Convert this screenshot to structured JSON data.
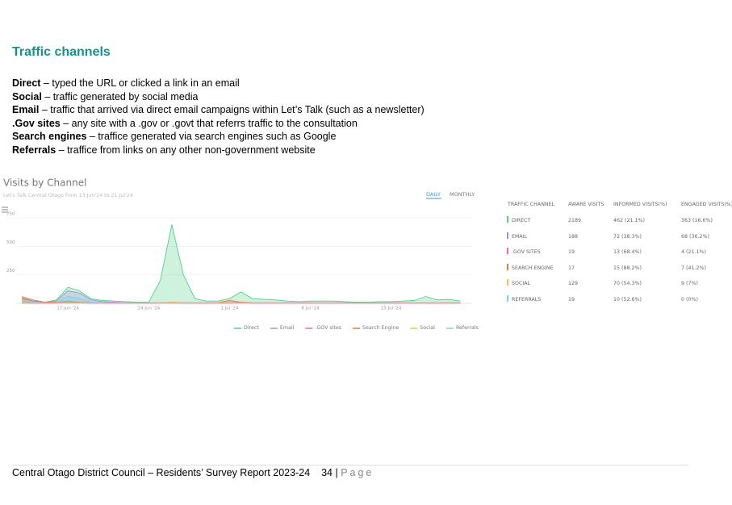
{
  "header": {
    "title": "Traffic channels"
  },
  "definitions": [
    {
      "term": "Direct",
      "text": "– typed the URL or clicked a link in an email"
    },
    {
      "term": "Social",
      "text": "– traffic generated by social media"
    },
    {
      "term": "Email",
      "text": "– traffic that arrived via direct email campaigns within Let’s Talk (such as a newsletter)"
    },
    {
      "term": ".Gov sites",
      "text": "– any site with a .gov or .govt that referrs traffic to the consultation"
    },
    {
      "term": "Search engines",
      "text": "– traffice generated via search engines such as Google"
    },
    {
      "term": "Referrals",
      "text": "– traffice from links on any other non-government website"
    }
  ],
  "chart_data": {
    "type": "area",
    "title": "Visits by Channel",
    "subtitle": "Let's Talk Central Otago from 13 Jun'24 to 21 Jul'24",
    "tabs": [
      "DAILY",
      "MONTHLY"
    ],
    "categories": [
      null,
      null,
      null,
      null,
      "17 Jun '24",
      null,
      null,
      null,
      null,
      null,
      null,
      "24 Jun '24",
      null,
      null,
      null,
      null,
      null,
      null,
      "1 Jul '24",
      null,
      null,
      null,
      null,
      null,
      null,
      "8 Jul '24",
      null,
      null,
      null,
      null,
      null,
      null,
      "15 Jul '24",
      null,
      null,
      null,
      null,
      null,
      null
    ],
    "ylim": [
      0,
      800
    ],
    "yticks": [
      250,
      500,
      750
    ],
    "grid": true,
    "series": [
      {
        "name": "Direct",
        "color": "#4fcf87",
        "values": [
          40,
          20,
          10,
          30,
          140,
          110,
          40,
          25,
          20,
          15,
          10,
          10,
          200,
          690,
          250,
          40,
          20,
          20,
          40,
          100,
          40,
          35,
          30,
          20,
          15,
          20,
          20,
          20,
          15,
          10,
          10,
          15,
          15,
          20,
          25,
          60,
          30,
          35,
          20
        ]
      },
      {
        "name": "Email",
        "color": "#a88ddb",
        "values": [
          50,
          20,
          10,
          20,
          110,
          90,
          30,
          15,
          10,
          5,
          5,
          5,
          5,
          10,
          5,
          5,
          5,
          5,
          5,
          10,
          5,
          5,
          5,
          5,
          5,
          5,
          5,
          5,
          5,
          5,
          5,
          5,
          5,
          5,
          5,
          5,
          5,
          5,
          5
        ]
      },
      {
        "name": ".GOV sites",
        "color": "#f06b93",
        "values": [
          2,
          1,
          1,
          1,
          3,
          2,
          1,
          1,
          1,
          1,
          1,
          1,
          1,
          2,
          1,
          1,
          1,
          1,
          1,
          2,
          1,
          1,
          1,
          1,
          1,
          1,
          1,
          1,
          1,
          1,
          1,
          1,
          1,
          1,
          1,
          1,
          1,
          1,
          1
        ]
      },
      {
        "name": "Search Engine",
        "color": "#e8793a",
        "values": [
          60,
          30,
          10,
          10,
          20,
          10,
          5,
          5,
          5,
          5,
          5,
          5,
          5,
          5,
          5,
          5,
          5,
          5,
          25,
          10,
          5,
          5,
          5,
          5,
          5,
          5,
          5,
          5,
          5,
          5,
          5,
          5,
          5,
          5,
          5,
          5,
          5,
          5,
          5
        ]
      },
      {
        "name": "Social",
        "color": "#f3c14a",
        "values": [
          10,
          5,
          3,
          3,
          10,
          8,
          3,
          3,
          3,
          3,
          3,
          3,
          5,
          10,
          5,
          3,
          3,
          3,
          5,
          5,
          3,
          3,
          3,
          3,
          3,
          3,
          3,
          3,
          3,
          3,
          3,
          3,
          3,
          3,
          3,
          3,
          3,
          3,
          3
        ]
      },
      {
        "name": "Referrals",
        "color": "#7fd0ef",
        "values": [
          20,
          10,
          5,
          5,
          60,
          40,
          10,
          5,
          3,
          3,
          3,
          3,
          3,
          5,
          3,
          3,
          3,
          3,
          3,
          5,
          3,
          3,
          3,
          3,
          3,
          3,
          3,
          3,
          3,
          3,
          3,
          3,
          3,
          3,
          3,
          3,
          3,
          3,
          3
        ]
      }
    ]
  },
  "table": {
    "header": [
      "TRAFFIC CHANNEL",
      "AWARE VISITS",
      "INFORMED VISITS(%)",
      "ENGAGED VISITS(%)"
    ],
    "rows": [
      [
        "DIRECT",
        "2189",
        "462 (21.1%)",
        "363 (16.6%)"
      ],
      [
        "EMAIL",
        "188",
        "72 (38.3%)",
        "68 (36.2%)"
      ],
      [
        ".GOV SITES",
        "19",
        "13 (68.4%)",
        "4 (21.1%)"
      ],
      [
        "SEARCH ENGINE",
        "17",
        "15 (88.2%)",
        "7 (41.2%)"
      ],
      [
        "SOCIAL",
        "129",
        "70 (54.3%)",
        "9 (7%)"
      ],
      [
        "REFERRALS",
        "19",
        "10 (52.6%)",
        "0 (0%)"
      ]
    ]
  },
  "footer": {
    "text": "Central Otago District Council – Residents’ Survey Report 2023-24",
    "page_number": "34",
    "separator": "|",
    "page_word": "Page"
  }
}
